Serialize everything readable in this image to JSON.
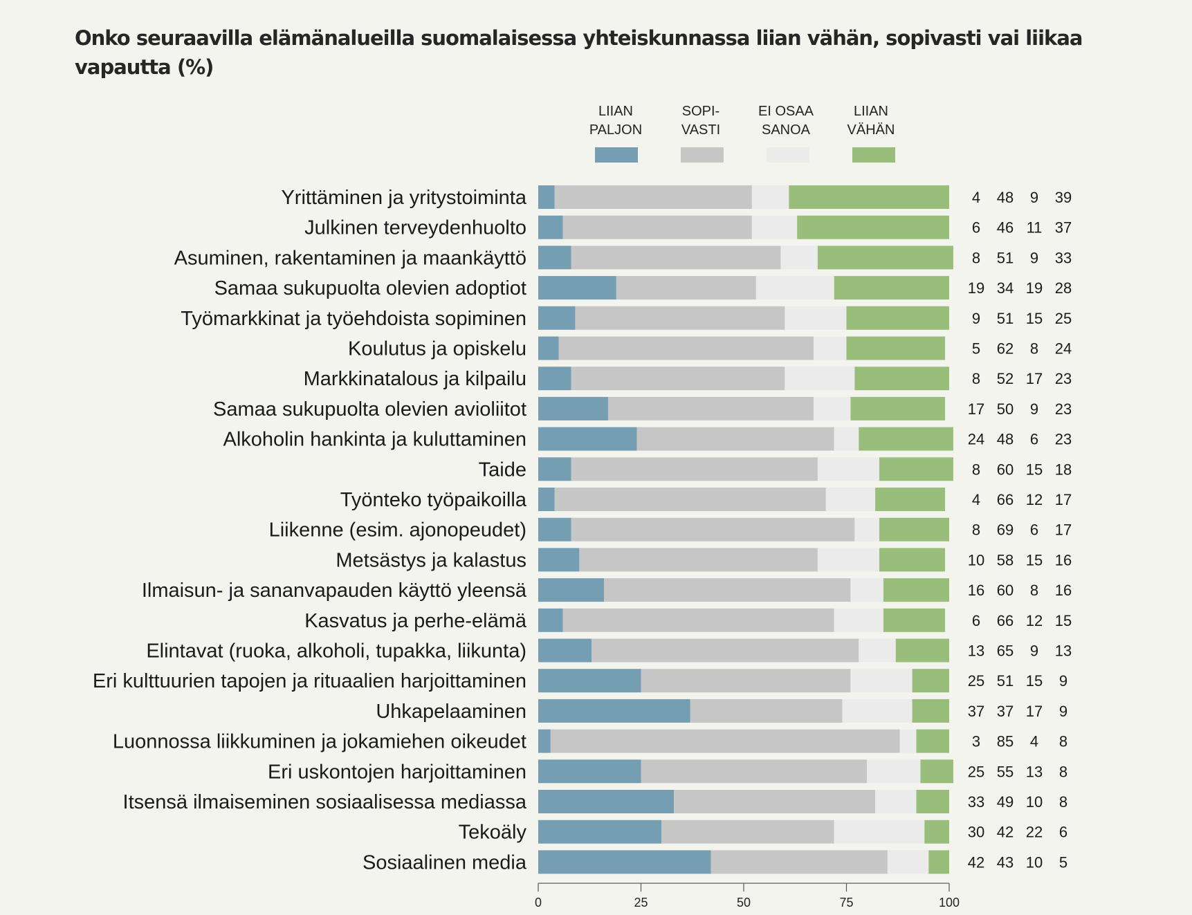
{
  "title": "Onko seuraavilla elämänalueilla suomalaisessa yhteiskunnassa liian vähän, sopivasti vai liikaa vapautta (%)",
  "legend": [
    {
      "line1": "LIIAN",
      "line2": "PALJON",
      "color": "#769eb3"
    },
    {
      "line1": "SOPI-",
      "line2": "VASTI",
      "color": "#c6c6c6"
    },
    {
      "line1": "EI OSAA",
      "line2": "SANOA",
      "color": "#ebebeb"
    },
    {
      "line1": "LIIAN",
      "line2": "VÄHÄN",
      "color": "#99bd7a"
    }
  ],
  "chart_data": {
    "type": "bar",
    "orientation": "horizontal",
    "stacked": true,
    "title": "Onko seuraavilla elämänalueilla suomalaisessa yhteiskunnassa liian vähän, sopivasti vai liikaa vapautta (%)",
    "xlabel": "",
    "ylabel": "",
    "xlim": [
      0,
      100
    ],
    "xticks": [
      0,
      25,
      50,
      75,
      100
    ],
    "grid": false,
    "legend_position": "top",
    "categories": [
      "Yrittäminen ja yritystoiminta",
      "Julkinen terveydenhuolto",
      "Asuminen, rakentaminen ja maankäyttö",
      "Samaa sukupuolta olevien adoptiot",
      "Työmarkkinat ja työehdoista sopiminen",
      "Koulutus ja opiskelu",
      "Markkinatalous ja kilpailu",
      "Samaa sukupuolta olevien avioliitot",
      "Alkoholin hankinta ja kuluttaminen",
      "Taide",
      "Työnteko työpaikoilla",
      "Liikenne (esim. ajonopeudet)",
      "Metsästys ja kalastus",
      "Ilmaisun- ja sananvapauden käyttö yleensä",
      "Kasvatus ja perhe-elämä",
      "Elintavat (ruoka, alkoholi, tupakka, liikunta)",
      "Eri kulttuurien tapojen ja rituaalien harjoittaminen",
      "Uhkapelaaminen",
      "Luonnossa liikkuminen ja jokamiehen oikeudet",
      "Eri uskontojen harjoittaminen",
      "Itsensä ilmaiseminen sosiaalisessa mediassa",
      "Tekoäly",
      "Sosiaalinen media"
    ],
    "series": [
      {
        "name": "Liian paljon",
        "color": "#769eb3",
        "values": [
          4,
          6,
          8,
          19,
          9,
          5,
          8,
          17,
          24,
          8,
          4,
          8,
          10,
          16,
          6,
          13,
          25,
          37,
          3,
          25,
          33,
          30,
          42
        ]
      },
      {
        "name": "Sopivasti",
        "color": "#c6c6c6",
        "values": [
          48,
          46,
          51,
          34,
          51,
          62,
          52,
          50,
          48,
          60,
          66,
          69,
          58,
          60,
          66,
          65,
          51,
          37,
          85,
          55,
          49,
          42,
          43
        ]
      },
      {
        "name": "Ei osaa sanoa",
        "color": "#ebebeb",
        "values": [
          9,
          11,
          9,
          19,
          15,
          8,
          17,
          9,
          6,
          15,
          12,
          6,
          15,
          8,
          12,
          9,
          15,
          17,
          4,
          13,
          10,
          22,
          10
        ]
      },
      {
        "name": "Liian vähän",
        "color": "#99bd7a",
        "values": [
          39,
          37,
          33,
          28,
          25,
          24,
          23,
          23,
          23,
          18,
          17,
          17,
          16,
          16,
          15,
          13,
          9,
          9,
          8,
          8,
          8,
          6,
          5
        ]
      }
    ]
  }
}
